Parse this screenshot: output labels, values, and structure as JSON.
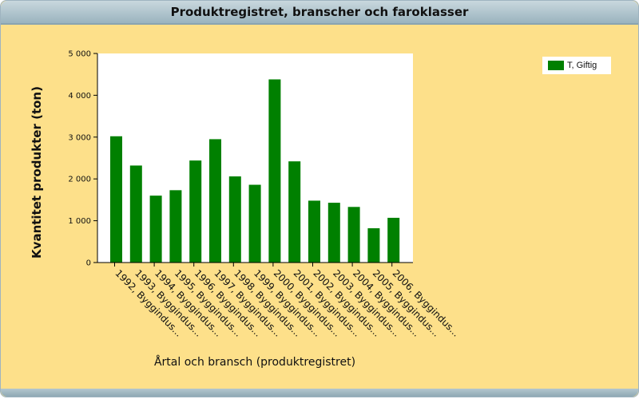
{
  "window": {
    "title": "Produktregistret, branscher och faroklasser"
  },
  "colors": {
    "background": "#fde08a",
    "plot_background": "#ffffff",
    "bar": "#008000"
  },
  "chart_data": {
    "type": "bar",
    "title": "",
    "xlabel": "Årtal och bransch (produktregistret)",
    "ylabel": "Kvantitet produkter (ton)",
    "ylim": [
      0,
      5000
    ],
    "yticks": [
      0,
      1000,
      2000,
      3000,
      4000,
      5000
    ],
    "ytick_labels": [
      "0",
      "1 000",
      "2 000",
      "3 000",
      "4 000",
      "5 000"
    ],
    "grid": false,
    "legend_position": "top-right",
    "categories": [
      "1992, Byggindus...",
      "1993, Byggindus...",
      "1994, Byggindus...",
      "1995, Byggindus...",
      "1996, Byggindus...",
      "1997, Byggindus...",
      "1998, Byggindus...",
      "1999, Byggindus...",
      "2000, Byggindus...",
      "2001, Byggindus...",
      "2002, Byggindus...",
      "2003, Byggindus...",
      "2004, Byggindus...",
      "2005, Byggindus...",
      "2006, Byggindus..."
    ],
    "series": [
      {
        "name": "T, Giftig",
        "color": "#008000",
        "values": [
          3020,
          2320,
          1600,
          1730,
          2440,
          2950,
          2060,
          1860,
          4380,
          2420,
          1480,
          1430,
          1330,
          820,
          1070
        ]
      }
    ]
  }
}
